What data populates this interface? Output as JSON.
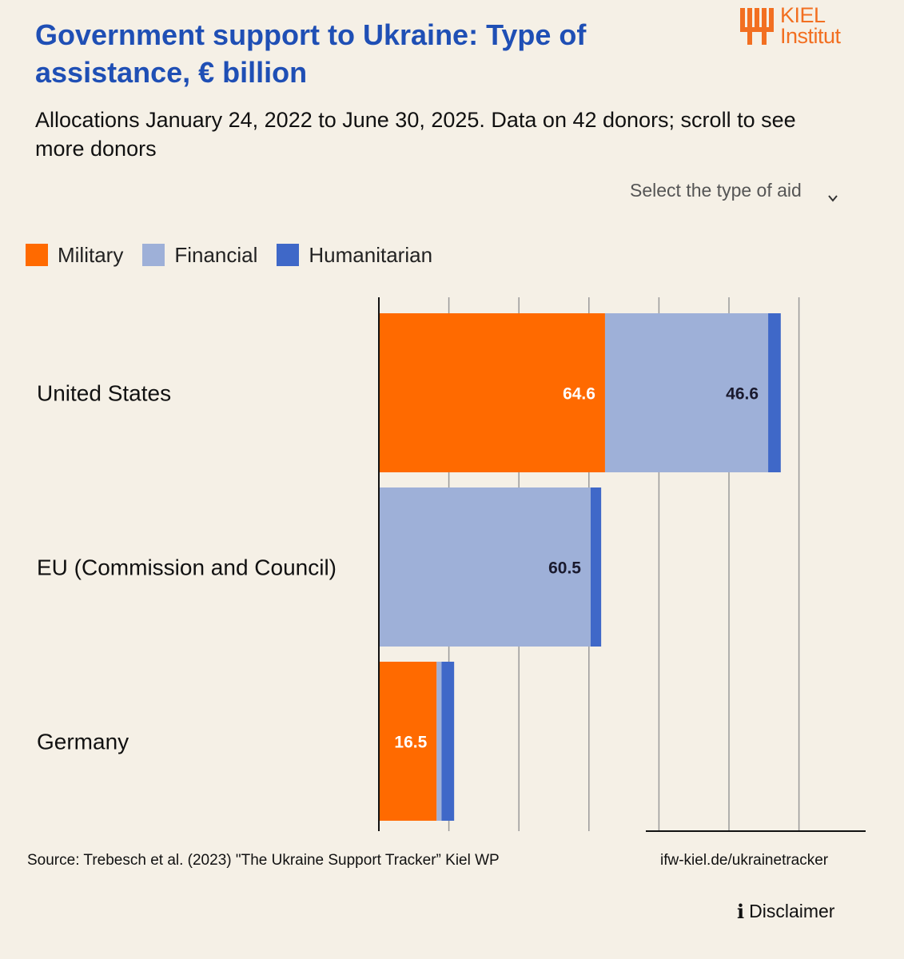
{
  "header": {
    "title": "Government support to Ukraine: Type of assistance, € billion",
    "subtitle": "Allocations January 24, 2022 to June 30, 2025. Data on 42 donors; scroll to see more donors"
  },
  "logo": {
    "line1": "KIEL",
    "line2": "Institut",
    "color": "#f26f21"
  },
  "controls": {
    "select_label": "Select the type of aid"
  },
  "legend": [
    {
      "label": "Military",
      "color": "#ff6a00"
    },
    {
      "label": "Financial",
      "color": "#9eb0d8"
    },
    {
      "label": "Humanitarian",
      "color": "#3f68c8"
    }
  ],
  "chart_data": {
    "type": "bar",
    "orientation": "horizontal",
    "stacked": true,
    "title": "Government support to Ukraine: Type of assistance, € billion",
    "xlabel": "",
    "ylabel": "",
    "xlim": [
      0,
      140
    ],
    "gridlines": [
      0,
      20,
      40,
      60,
      80,
      100,
      120
    ],
    "categories": [
      "United States",
      "EU (Commission and Council)",
      "Germany"
    ],
    "series": [
      {
        "name": "Military",
        "color": "#ff6a00",
        "values": [
          64.6,
          0,
          16.5
        ]
      },
      {
        "name": "Financial",
        "color": "#9eb0d8",
        "values": [
          46.6,
          60.5,
          1.4
        ]
      },
      {
        "name": "Humanitarian",
        "color": "#3f68c8",
        "values": [
          3.6,
          3.0,
          3.6
        ]
      }
    ],
    "data_labels": [
      {
        "category": "United States",
        "series": "Military",
        "text": "64.6"
      },
      {
        "category": "United States",
        "series": "Financial",
        "text": "46.6"
      },
      {
        "category": "EU (Commission and Council)",
        "series": "Financial",
        "text": "60.5"
      },
      {
        "category": "Germany",
        "series": "Military",
        "text": "16.5"
      }
    ]
  },
  "footer": {
    "source": "Source: Trebesch et al. (2023) \"The Ukraine Support Tracker” Kiel WP",
    "url": "ifw-kiel.de/ukrainetracker",
    "disclaimer": "Disclaimer"
  }
}
